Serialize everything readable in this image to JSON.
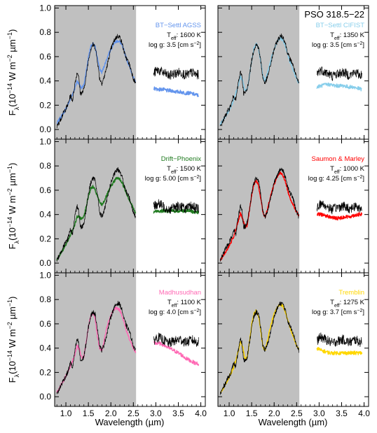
{
  "figure": {
    "target_label": "PSO 318.5−22",
    "xlabel": "Wavelength (µm)",
    "ylabel": "Fλ(10⁻¹⁴ W m⁻² µm⁻¹)",
    "ylabel_parts": {
      "base": "F",
      "sub": "λ",
      "mid": "(10",
      "sup1": "−14",
      "mid2": " W m",
      "sup2": "−2",
      "mid3": " µm",
      "sup3": "−1",
      "end": ")"
    }
  },
  "chart_data": {
    "type": "line",
    "layout": "3 rows x 2 columns of panels",
    "xlim": [
      0.75,
      4.1
    ],
    "ylim": [
      -0.08,
      1.02
    ],
    "xticks": [
      1.0,
      1.5,
      2.0,
      2.5,
      3.0,
      3.5,
      4.0
    ],
    "xtick_labels": [
      "1.0",
      "1.5",
      "2.0",
      "2.5",
      "3.0",
      "3.5",
      "4.0"
    ],
    "yticks": [
      0.0,
      0.2,
      0.4,
      0.6,
      0.8,
      1.0
    ],
    "ytick_labels": [
      "0.0",
      "0.2",
      "0.4",
      "0.6",
      "0.8",
      "1.0"
    ],
    "shaded_region": [
      0.75,
      2.56
    ],
    "shade_color": "#c0c0c0",
    "observed_color": "#000000",
    "observed_nir": {
      "x": [
        0.8,
        0.85,
        0.9,
        0.95,
        1.0,
        1.05,
        1.1,
        1.15,
        1.2,
        1.25,
        1.28,
        1.32,
        1.36,
        1.4,
        1.45,
        1.5,
        1.55,
        1.6,
        1.65,
        1.7,
        1.75,
        1.8,
        1.85,
        1.9,
        1.95,
        2.0,
        2.05,
        2.1,
        2.15,
        2.2,
        2.25,
        2.3,
        2.35,
        2.4,
        2.45,
        2.5,
        2.55
      ],
      "y": [
        0.02,
        0.06,
        0.1,
        0.14,
        0.17,
        0.21,
        0.28,
        0.24,
        0.38,
        0.47,
        0.45,
        0.3,
        0.3,
        0.33,
        0.44,
        0.57,
        0.66,
        0.7,
        0.68,
        0.57,
        0.42,
        0.38,
        0.43,
        0.5,
        0.58,
        0.66,
        0.71,
        0.75,
        0.77,
        0.76,
        0.71,
        0.63,
        0.58,
        0.55,
        0.49,
        0.42,
        0.38
      ]
    },
    "observed_lband": {
      "x": [
        2.95,
        3.0,
        3.05,
        3.1,
        3.15,
        3.2,
        3.25,
        3.3,
        3.35,
        3.4,
        3.45,
        3.5,
        3.55,
        3.6,
        3.65,
        3.7,
        3.75,
        3.8,
        3.85,
        3.9,
        3.95
      ],
      "y": [
        0.46,
        0.48,
        0.49,
        0.48,
        0.47,
        0.46,
        0.45,
        0.44,
        0.45,
        0.46,
        0.46,
        0.47,
        0.47,
        0.46,
        0.45,
        0.45,
        0.46,
        0.47,
        0.46,
        0.45,
        0.45
      ]
    },
    "panels": [
      {
        "name": "BT−Settl AGSS",
        "color": "#6495ed",
        "teff": "1600 K",
        "logg": "3.5 [cm s",
        "model_nir": {
          "x": [
            0.8,
            0.9,
            1.0,
            1.1,
            1.2,
            1.25,
            1.3,
            1.35,
            1.4,
            1.45,
            1.5,
            1.55,
            1.6,
            1.65,
            1.7,
            1.75,
            1.8,
            1.85,
            1.9,
            1.95,
            2.0,
            2.05,
            2.1,
            2.15,
            2.2,
            2.25,
            2.3,
            2.35,
            2.4,
            2.45,
            2.5,
            2.55
          ],
          "y": [
            0.05,
            0.11,
            0.17,
            0.25,
            0.34,
            0.4,
            0.37,
            0.34,
            0.37,
            0.47,
            0.59,
            0.68,
            0.71,
            0.68,
            0.59,
            0.5,
            0.47,
            0.52,
            0.57,
            0.62,
            0.66,
            0.7,
            0.72,
            0.73,
            0.72,
            0.69,
            0.64,
            0.58,
            0.53,
            0.48,
            0.43,
            0.38
          ]
        },
        "model_lband": {
          "x": [
            2.95,
            3.05,
            3.15,
            3.25,
            3.35,
            3.45,
            3.55,
            3.65,
            3.75,
            3.85,
            3.95
          ],
          "y": [
            0.34,
            0.33,
            0.33,
            0.32,
            0.32,
            0.31,
            0.31,
            0.3,
            0.3,
            0.29,
            0.28
          ]
        }
      },
      {
        "name": "BT−Settl CIFIST",
        "color": "#87ceeb",
        "teff": "1350 K",
        "logg": "3.5 [cm s",
        "model_nir": {
          "x": [
            0.8,
            0.9,
            1.0,
            1.1,
            1.2,
            1.25,
            1.3,
            1.35,
            1.4,
            1.45,
            1.5,
            1.55,
            1.6,
            1.65,
            1.7,
            1.75,
            1.8,
            1.85,
            1.9,
            1.95,
            2.0,
            2.05,
            2.1,
            2.15,
            2.2,
            2.25,
            2.3,
            2.35,
            2.4,
            2.45,
            2.5,
            2.55
          ],
          "y": [
            0.04,
            0.1,
            0.16,
            0.24,
            0.36,
            0.44,
            0.4,
            0.32,
            0.33,
            0.44,
            0.57,
            0.67,
            0.71,
            0.67,
            0.56,
            0.44,
            0.4,
            0.46,
            0.53,
            0.6,
            0.66,
            0.71,
            0.74,
            0.75,
            0.73,
            0.69,
            0.62,
            0.56,
            0.51,
            0.46,
            0.42,
            0.38
          ]
        },
        "model_lband": {
          "x": [
            2.95,
            3.05,
            3.15,
            3.25,
            3.35,
            3.45,
            3.55,
            3.65,
            3.75,
            3.85,
            3.95
          ],
          "y": [
            0.35,
            0.36,
            0.37,
            0.37,
            0.36,
            0.36,
            0.36,
            0.35,
            0.35,
            0.34,
            0.33
          ]
        }
      },
      {
        "name": "Drift−Phoenix",
        "color": "#1f7a1f",
        "teff": "1500 K",
        "logg": "5.00 [cm s",
        "model_nir": {
          "x": [
            0.8,
            0.9,
            1.0,
            1.1,
            1.2,
            1.25,
            1.3,
            1.35,
            1.4,
            1.45,
            1.5,
            1.55,
            1.6,
            1.65,
            1.7,
            1.75,
            1.8,
            1.85,
            1.9,
            1.95,
            2.0,
            2.05,
            2.1,
            2.15,
            2.2,
            2.25,
            2.3,
            2.35,
            2.4,
            2.45,
            2.5,
            2.55
          ],
          "y": [
            0.03,
            0.09,
            0.15,
            0.23,
            0.32,
            0.38,
            0.38,
            0.36,
            0.39,
            0.46,
            0.55,
            0.61,
            0.63,
            0.6,
            0.55,
            0.5,
            0.48,
            0.51,
            0.55,
            0.59,
            0.63,
            0.66,
            0.69,
            0.7,
            0.69,
            0.66,
            0.62,
            0.57,
            0.53,
            0.49,
            0.45,
            0.41
          ]
        },
        "model_lband": {
          "x": [
            2.95,
            3.05,
            3.15,
            3.25,
            3.35,
            3.45,
            3.55,
            3.65,
            3.75,
            3.85,
            3.95
          ],
          "y": [
            0.42,
            0.43,
            0.43,
            0.43,
            0.43,
            0.43,
            0.43,
            0.43,
            0.43,
            0.42,
            0.42
          ]
        }
      },
      {
        "name": "Saumon & Marley",
        "color": "#ff0000",
        "teff": "1000 K",
        "logg": "4.25 [cm s",
        "model_nir": {
          "x": [
            0.8,
            0.9,
            1.0,
            1.1,
            1.2,
            1.25,
            1.3,
            1.35,
            1.4,
            1.45,
            1.5,
            1.55,
            1.6,
            1.65,
            1.7,
            1.75,
            1.8,
            1.85,
            1.9,
            1.95,
            2.0,
            2.05,
            2.1,
            2.15,
            2.2,
            2.25,
            2.3,
            2.35,
            2.4,
            2.45,
            2.5,
            2.55
          ],
          "y": [
            0.02,
            0.08,
            0.14,
            0.22,
            0.34,
            0.41,
            0.36,
            0.3,
            0.31,
            0.43,
            0.56,
            0.65,
            0.68,
            0.64,
            0.54,
            0.42,
            0.38,
            0.44,
            0.52,
            0.59,
            0.65,
            0.7,
            0.73,
            0.74,
            0.72,
            0.67,
            0.6,
            0.54,
            0.5,
            0.46,
            0.42,
            0.39
          ]
        },
        "model_lband": {
          "x": [
            2.95,
            3.05,
            3.15,
            3.25,
            3.35,
            3.45,
            3.55,
            3.65,
            3.75,
            3.85,
            3.95
          ],
          "y": [
            0.4,
            0.4,
            0.39,
            0.38,
            0.37,
            0.37,
            0.38,
            0.38,
            0.39,
            0.4,
            0.4
          ]
        }
      },
      {
        "name": "Madhusudhan",
        "color": "#ff69b4",
        "teff": "1100 K",
        "logg": "4.0 [cm s",
        "model_nir": {
          "x": [
            0.8,
            0.9,
            1.0,
            1.1,
            1.2,
            1.25,
            1.3,
            1.35,
            1.4,
            1.45,
            1.5,
            1.55,
            1.6,
            1.65,
            1.7,
            1.75,
            1.8,
            1.85,
            1.9,
            1.95,
            2.0,
            2.05,
            2.1,
            2.15,
            2.2,
            2.25,
            2.3,
            2.35,
            2.4,
            2.45,
            2.5,
            2.55
          ],
          "y": [
            0.04,
            0.1,
            0.17,
            0.25,
            0.35,
            0.42,
            0.39,
            0.32,
            0.33,
            0.44,
            0.58,
            0.66,
            0.69,
            0.64,
            0.5,
            0.4,
            0.38,
            0.46,
            0.55,
            0.62,
            0.67,
            0.71,
            0.73,
            0.73,
            0.71,
            0.67,
            0.6,
            0.54,
            0.49,
            0.44,
            0.4,
            0.36
          ]
        },
        "model_lband": {
          "x": [
            2.95,
            3.05,
            3.15,
            3.25,
            3.35,
            3.45,
            3.55,
            3.65,
            3.75,
            3.85,
            3.95
          ],
          "y": [
            0.44,
            0.44,
            0.43,
            0.41,
            0.39,
            0.37,
            0.35,
            0.32,
            0.3,
            0.28,
            0.27
          ]
        }
      },
      {
        "name": "Tremblin",
        "color": "#ffd700",
        "teff": "1275 K",
        "logg": "3.7 [cm s",
        "model_nir": {
          "x": [
            0.8,
            0.9,
            1.0,
            1.1,
            1.2,
            1.25,
            1.3,
            1.35,
            1.4,
            1.45,
            1.5,
            1.55,
            1.6,
            1.65,
            1.7,
            1.75,
            1.8,
            1.85,
            1.9,
            1.95,
            2.0,
            2.05,
            2.1,
            2.15,
            2.2,
            2.25,
            2.3,
            2.35,
            2.4,
            2.45,
            2.5,
            2.55
          ],
          "y": [
            0.03,
            0.09,
            0.16,
            0.24,
            0.37,
            0.45,
            0.41,
            0.31,
            0.32,
            0.45,
            0.59,
            0.68,
            0.71,
            0.67,
            0.55,
            0.41,
            0.38,
            0.46,
            0.55,
            0.62,
            0.68,
            0.72,
            0.75,
            0.76,
            0.74,
            0.7,
            0.63,
            0.57,
            0.52,
            0.47,
            0.42,
            0.38
          ]
        },
        "model_lband": {
          "x": [
            2.95,
            3.05,
            3.15,
            3.25,
            3.35,
            3.45,
            3.55,
            3.65,
            3.75,
            3.85,
            3.95
          ],
          "y": [
            0.4,
            0.38,
            0.37,
            0.36,
            0.36,
            0.36,
            0.36,
            0.36,
            0.36,
            0.36,
            0.36
          ]
        }
      }
    ]
  }
}
